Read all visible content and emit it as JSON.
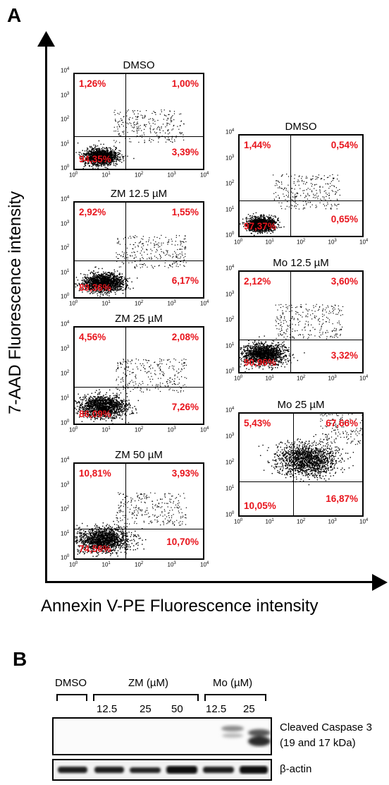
{
  "panel_a": {
    "label": "A",
    "y_axis_label": "7-AAD Fluorescence intensity",
    "x_axis_label": "Annexin V-PE Fluorescence intensity",
    "plots": [
      {
        "title": "DMSO",
        "quadrants": {
          "ul": "1,26%",
          "ur": "1,00%",
          "ll": "94,35%",
          "lr": "3,39%"
        }
      },
      {
        "title": "ZM 12.5 µM",
        "quadrants": {
          "ul": "2,92%",
          "ur": "1,55%",
          "ll": "89,36%",
          "lr": "6,17%"
        }
      },
      {
        "title": "ZM 25 µM",
        "quadrants": {
          "ul": "4,56%",
          "ur": "2,08%",
          "ll": "86,09%",
          "lr": "7,26%"
        }
      },
      {
        "title": "ZM 50 µM",
        "quadrants": {
          "ul": "10,81%",
          "ur": "3,93%",
          "ll": "74,56%",
          "lr": "10,70%"
        }
      },
      {
        "title": "DMSO",
        "quadrants": {
          "ul": "1,44%",
          "ur": "0,54%",
          "ll": "97,37%",
          "lr": "0,65%"
        }
      },
      {
        "title": "Mo 12.5 µM",
        "quadrants": {
          "ul": "2,12%",
          "ur": "3,60%",
          "ll": "90,96%",
          "lr": "3,32%"
        }
      },
      {
        "title": "Mo 25 µM",
        "quadrants": {
          "ul": "5,43%",
          "ur": "67,66%",
          "ll": "10,05%",
          "lr": "16,87%"
        }
      }
    ],
    "tick_labels": [
      "10",
      "0",
      "1",
      "2",
      "3",
      "4"
    ]
  },
  "panel_b": {
    "label": "B",
    "groups": [
      "DMSO",
      "ZM (µM)",
      "Mo (µM)"
    ],
    "lanes": [
      "",
      "12.5",
      "25",
      "50",
      "12.5",
      "25"
    ],
    "blots": [
      {
        "label_line1": "Cleaved Caspase 3",
        "label_line2": "(19 and 17 kDa)"
      },
      {
        "label_line1": "β-actin"
      }
    ]
  },
  "colors": {
    "quadrant_text": "#e8141c",
    "dots": "#000000"
  }
}
